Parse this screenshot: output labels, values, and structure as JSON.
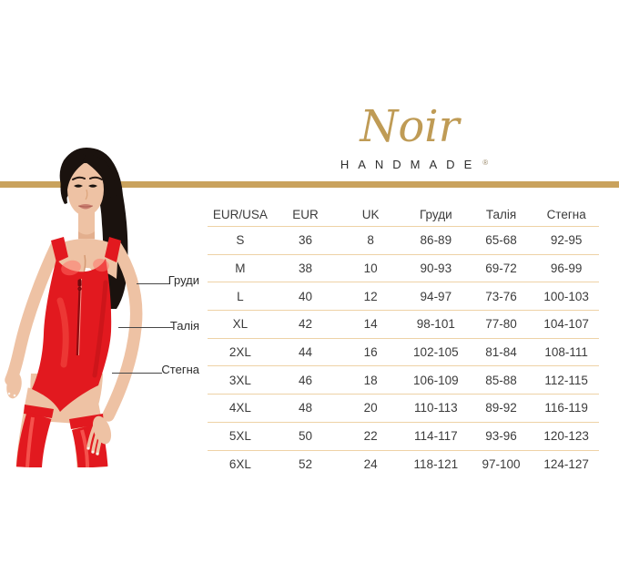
{
  "brand": {
    "logo_script": "Noir",
    "logo_sub": "HANDMADE",
    "registered_mark": "®"
  },
  "colors": {
    "gold_bar": "#c9a25d",
    "logo_gold": "#bf9b55",
    "row_separator": "#eed2a6",
    "table_text": "#3b3b3b",
    "garment_red": "#e2191f"
  },
  "measurements": [
    {
      "label": "Груди"
    },
    {
      "label": "Талія"
    },
    {
      "label": "Стегна"
    }
  ],
  "size_table": {
    "columns": [
      "EUR/USA",
      "EUR",
      "UK",
      "Груди",
      "Талія",
      "Стегна"
    ],
    "rows": [
      [
        "S",
        "36",
        "8",
        "86-89",
        "65-68",
        "92-95"
      ],
      [
        "M",
        "38",
        "10",
        "90-93",
        "69-72",
        "96-99"
      ],
      [
        "L",
        "40",
        "12",
        "94-97",
        "73-76",
        "100-103"
      ],
      [
        "XL",
        "42",
        "14",
        "98-101",
        "77-80",
        "104-107"
      ],
      [
        "2XL",
        "44",
        "16",
        "102-105",
        "81-84",
        "108-111"
      ],
      [
        "3XL",
        "46",
        "18",
        "106-109",
        "85-88",
        "112-115"
      ],
      [
        "4XL",
        "48",
        "20",
        "110-113",
        "89-92",
        "116-119"
      ],
      [
        "5XL",
        "50",
        "22",
        "114-117",
        "93-96",
        "120-123"
      ],
      [
        "6XL",
        "52",
        "24",
        "118-121",
        "97-100",
        "124-127"
      ]
    ]
  }
}
